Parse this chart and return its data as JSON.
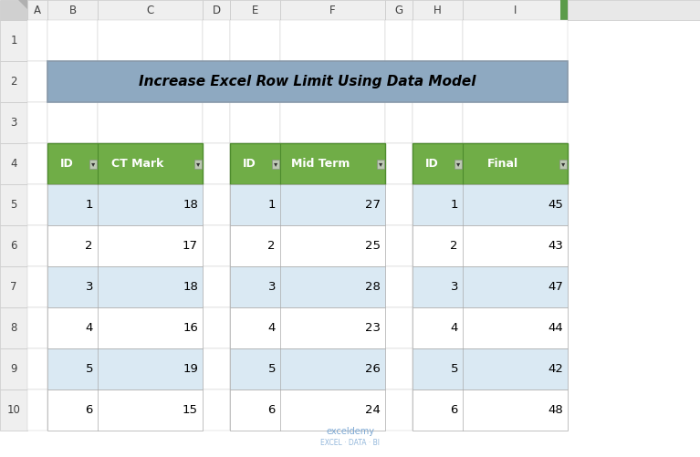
{
  "title": "Increase Excel Row Limit Using Data Model",
  "title_bg": "#8EA9C1",
  "title_fontsize": 11,
  "col_header_bg": "#70AD47",
  "col_header_fg": "#FFFFFF",
  "row_alt_bg": "#DAE9F3",
  "row_white_bg": "#FFFFFF",
  "border_color": "#AAAAAA",
  "excel_bg": "#FFFFFF",
  "tables": [
    {
      "headers": [
        "ID",
        "CT Mark"
      ],
      "data": [
        [
          1,
          18
        ],
        [
          2,
          17
        ],
        [
          3,
          18
        ],
        [
          4,
          16
        ],
        [
          5,
          19
        ],
        [
          6,
          15
        ]
      ]
    },
    {
      "headers": [
        "ID",
        "Mid Term"
      ],
      "data": [
        [
          1,
          27
        ],
        [
          2,
          25
        ],
        [
          3,
          28
        ],
        [
          4,
          23
        ],
        [
          5,
          26
        ],
        [
          6,
          24
        ]
      ]
    },
    {
      "headers": [
        "ID",
        "Final"
      ],
      "data": [
        [
          1,
          45
        ],
        [
          2,
          43
        ],
        [
          3,
          47
        ],
        [
          4,
          44
        ],
        [
          5,
          42
        ],
        [
          6,
          48
        ]
      ]
    }
  ],
  "col_labels": [
    "A",
    "B",
    "C",
    "D",
    "E",
    "F",
    "G",
    "H",
    "I",
    ""
  ],
  "row_labels": [
    "1",
    "2",
    "3",
    "4",
    "5",
    "6",
    "7",
    "8",
    "9",
    "10"
  ],
  "grid_line_color": "#C8C8C8",
  "header_bg": "#EFEFEF",
  "corner_bg": "#D0D0D0"
}
